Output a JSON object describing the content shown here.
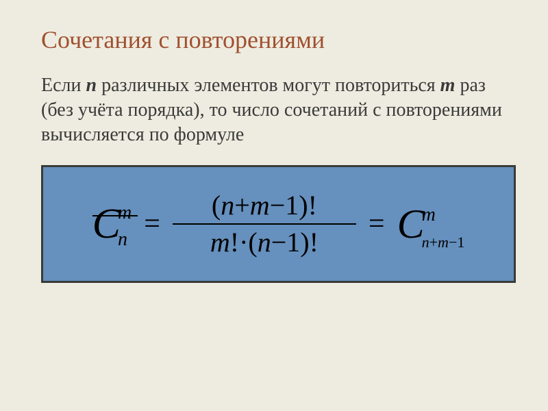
{
  "title": "Сочетания с повторениями",
  "body": {
    "seg1": "Если ",
    "var_n": "n",
    "seg2": " различных элементов могут повториться ",
    "var_m": "m",
    "seg3": " раз (без учёта порядка), то число сочетаний с повторениями вычисляется по формуле"
  },
  "formula": {
    "lhs": {
      "C": "C",
      "sup": "m",
      "sub": "n"
    },
    "eq": "=",
    "frac": {
      "num_open": "(",
      "num_n": "n",
      "num_plus": "+",
      "num_m": "m",
      "num_minus": "−",
      "num_one": "1",
      "num_close": ")!",
      "den_m": "m",
      "den_fact": "!·",
      "den_open": "(",
      "den_n": "n",
      "den_minus": "−",
      "den_one": "1",
      "den_close": ")!"
    },
    "eq2": "=",
    "rhs": {
      "C": "C",
      "sup": "m",
      "sub_n": "n",
      "sub_plus": "+",
      "sub_m": "m",
      "sub_minus": "−",
      "sub_one": "1"
    }
  },
  "colors": {
    "background": "#eeece0",
    "title": "#a05030",
    "body_text": "#3a3a3a",
    "formula_bg": "#6690bd",
    "formula_border": "#3a3a3a",
    "formula_text": "#000000"
  },
  "layout": {
    "slide_w": 800,
    "slide_h": 600,
    "formula_w": 693,
    "formula_h": 172,
    "title_fontsize": 36,
    "body_fontsize": 28,
    "bigC_fontsize": 62,
    "frac_fontsize": 40,
    "script_fontsize": 28
  }
}
